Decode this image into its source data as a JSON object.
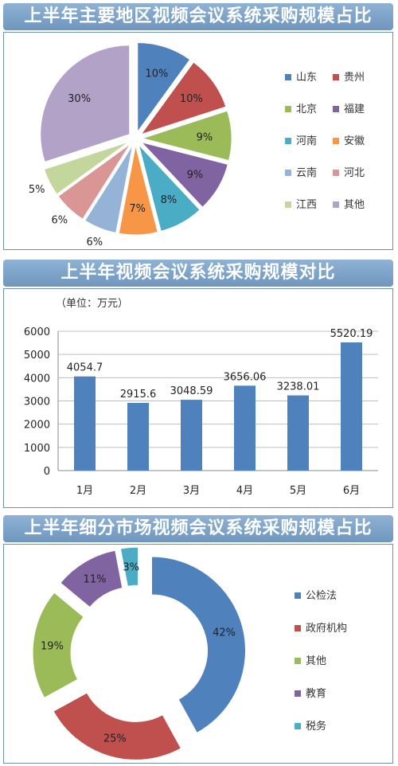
{
  "panel1": {
    "title": "上半年主要地区视频会议系统采购规模占比"
  },
  "panel2": {
    "title": "上半年视频会议系统采购规模对比",
    "unit": "（单位：万元）"
  },
  "panel3": {
    "title": "上半年细分市场视频会议系统采购规模占比"
  },
  "chart_data": [
    {
      "type": "pie",
      "title": "上半年主要地区视频会议系统采购规模占比",
      "categories": [
        "山东",
        "贵州",
        "北京",
        "福建",
        "河南",
        "安徽",
        "云南",
        "河北",
        "江西",
        "其他"
      ],
      "values": [
        10,
        10,
        9,
        9,
        8,
        7,
        6,
        6,
        5,
        30
      ],
      "labels": [
        "10%",
        "10%",
        "9%",
        "9%",
        "8%",
        "7%",
        "6%",
        "6%",
        "5%",
        "30%"
      ],
      "colors": [
        "#4f81bd",
        "#c0504d",
        "#9bbb59",
        "#8064a2",
        "#4bacc6",
        "#f79646",
        "#95b3d7",
        "#d99694",
        "#c3d69b",
        "#b2a2c7"
      ],
      "legend_position": "right",
      "exploded": true
    },
    {
      "type": "bar",
      "title": "上半年视频会议系统采购规模对比",
      "categories": [
        "1月",
        "2月",
        "3月",
        "4月",
        "5月",
        "6月"
      ],
      "values": [
        4054.7,
        2915.6,
        3048.59,
        3656.06,
        3238.01,
        5520.19
      ],
      "value_labels": [
        "4054.7",
        "2915.6",
        "3048.59",
        "3656.06",
        "3238.01",
        "5520.19"
      ],
      "ylim": [
        0,
        6000
      ],
      "yticks": [
        0,
        1000,
        2000,
        3000,
        4000,
        5000,
        6000
      ],
      "ylabel": "（单位：万元）",
      "grid": true,
      "color": "#4f81bd"
    },
    {
      "type": "pie",
      "title": "上半年细分市场视频会议系统采购规模占比",
      "categories": [
        "公检法",
        "政府机构",
        "其他",
        "教育",
        "税务"
      ],
      "values": [
        42,
        25,
        19,
        11,
        3
      ],
      "labels": [
        "42%",
        "25%",
        "19%",
        "11%",
        "3%"
      ],
      "colors": [
        "#4f81bd",
        "#c0504d",
        "#9bbb59",
        "#8064a2",
        "#4bacc6"
      ],
      "legend_position": "right",
      "donut": true,
      "exploded": true
    }
  ]
}
